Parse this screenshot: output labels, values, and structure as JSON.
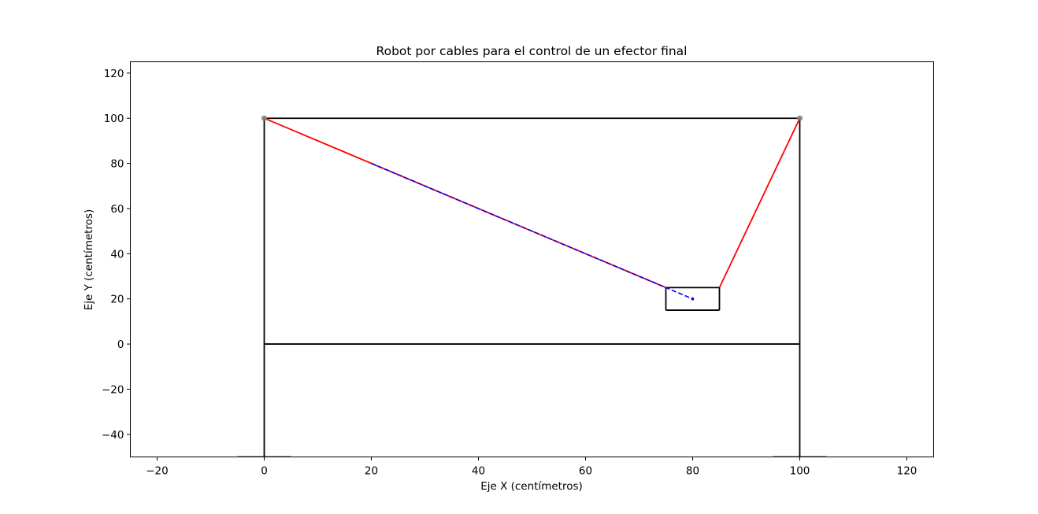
{
  "chart_data": {
    "type": "line",
    "title": "Robot por cables para el control de un efector final",
    "xlabel": "Eje X (centímetros)",
    "ylabel": "Eje Y (centímetros)",
    "xlim": [
      -25,
      125
    ],
    "ylim": [
      -50,
      125
    ],
    "x_ticks": [
      -20,
      0,
      20,
      40,
      60,
      80,
      100,
      120
    ],
    "y_ticks": [
      -40,
      -20,
      0,
      20,
      40,
      60,
      80,
      100,
      120
    ],
    "x_tick_labels": [
      "−20",
      "0",
      "20",
      "40",
      "60",
      "80",
      "100",
      "120"
    ],
    "y_tick_labels": [
      "−40",
      "−20",
      "0",
      "20",
      "40",
      "60",
      "80",
      "100",
      "120"
    ],
    "grid": false,
    "colors": {
      "structure": "#000000",
      "cable": "#ff0000",
      "trajectory": "#0000ff",
      "anchor": "#808080"
    },
    "series": [
      {
        "role": "structure",
        "style": "solid",
        "segments": [
          [
            [
              0,
              100
            ],
            [
              100,
              100
            ]
          ],
          [
            [
              0,
              100
            ],
            [
              0,
              -50
            ]
          ],
          [
            [
              100,
              100
            ],
            [
              100,
              -50
            ]
          ],
          [
            [
              0,
              0
            ],
            [
              100,
              0
            ]
          ],
          [
            [
              -5,
              -50
            ],
            [
              5,
              -50
            ]
          ],
          [
            [
              95,
              -50
            ],
            [
              105,
              -50
            ]
          ]
        ]
      },
      {
        "role": "end-effector",
        "style": "solid",
        "segments": [
          [
            [
              75,
              15
            ],
            [
              85,
              15
            ]
          ],
          [
            [
              85,
              15
            ],
            [
              85,
              25
            ]
          ],
          [
            [
              85,
              25
            ],
            [
              75,
              25
            ]
          ],
          [
            [
              75,
              25
            ],
            [
              75,
              15
            ]
          ]
        ]
      },
      {
        "role": "cable",
        "style": "solid",
        "segments": [
          [
            [
              0,
              100
            ],
            [
              75,
              25
            ]
          ],
          [
            [
              100,
              100
            ],
            [
              85,
              25
            ]
          ]
        ]
      },
      {
        "role": "trajectory",
        "style": "dashed",
        "segments": [
          [
            [
              20,
              80
            ],
            [
              80,
              20
            ]
          ]
        ]
      }
    ],
    "anchors": [
      {
        "x": 0,
        "y": 100
      },
      {
        "x": 100,
        "y": 100
      }
    ],
    "trajectory_end": {
      "x": 80,
      "y": 20
    }
  }
}
